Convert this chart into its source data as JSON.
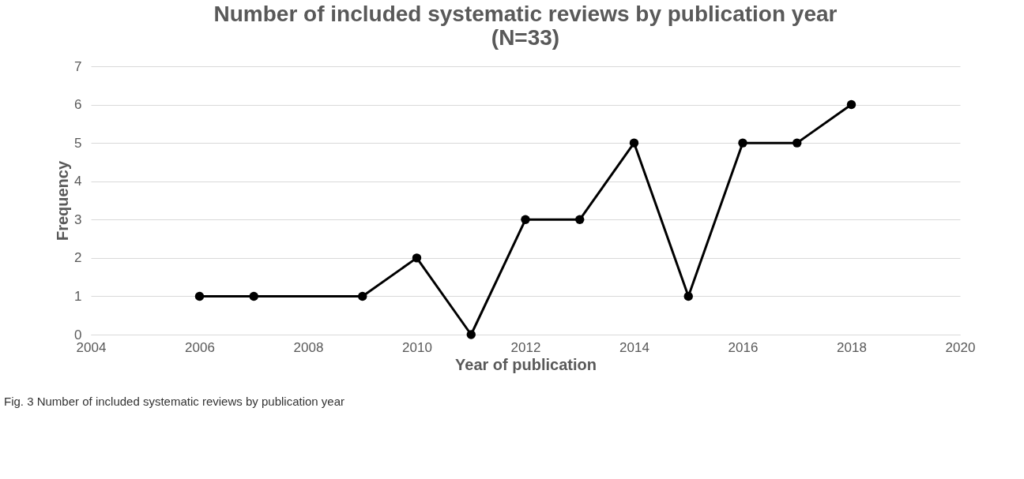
{
  "chart_data": {
    "type": "line",
    "title": "Number of included systematic reviews by publication year (N=33)",
    "xlabel": "Year of publication",
    "ylabel": "Frequency",
    "x": [
      2006,
      2007,
      2009,
      2010,
      2011,
      2012,
      2013,
      2014,
      2015,
      2016,
      2017,
      2018
    ],
    "series": [
      {
        "color": "#000000",
        "values": [
          1,
          1,
          1,
          2,
          0,
          3,
          3,
          5,
          1,
          5,
          5,
          6
        ]
      }
    ],
    "xlim": [
      2004,
      2020
    ],
    "xticks": [
      2004,
      2006,
      2008,
      2010,
      2012,
      2014,
      2016,
      2018,
      2020
    ],
    "ylim": [
      0,
      7
    ],
    "yticks": [
      0,
      1,
      2,
      3,
      4,
      5,
      6,
      7
    ],
    "grid": "y",
    "marker": "circle",
    "line_style": "solid",
    "annotations": [
      "Fig. 3 Number of included systematic reviews by publication year"
    ]
  }
}
